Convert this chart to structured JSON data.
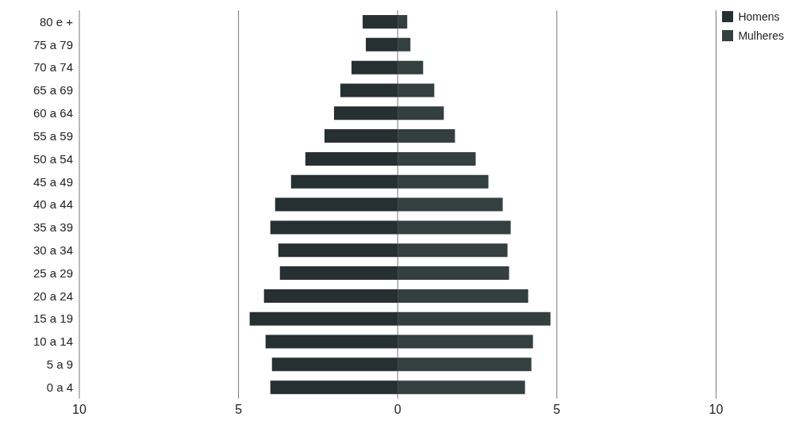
{
  "chart_data": {
    "type": "bar",
    "orientation": "horizontal",
    "stacked": true,
    "categories": [
      "80 e +",
      "75 a 79",
      "70 a 74",
      "65 a 69",
      "60 a 64",
      "55 a 59",
      "50 a 54",
      "45 a 49",
      "40 a 44",
      "35 a 39",
      "30 a 34",
      "25 a 29",
      "20 a 24",
      "15 a 19",
      "10 a 14",
      "5 a 9",
      "0 a 4"
    ],
    "series": [
      {
        "name": "Homens",
        "color": "#263032",
        "values": [
          -1.1,
          -1.0,
          -1.45,
          -1.8,
          -2.0,
          -2.3,
          -2.9,
          -3.35,
          -3.85,
          -4.0,
          -3.75,
          -3.7,
          -4.2,
          -4.65,
          -4.15,
          -3.95,
          -4.0
        ]
      },
      {
        "name": "Mulheres",
        "color": "#34403f",
        "values": [
          0.3,
          0.4,
          0.8,
          1.15,
          1.45,
          1.8,
          2.45,
          2.85,
          3.3,
          3.55,
          3.45,
          3.5,
          4.1,
          4.8,
          4.25,
          4.2,
          4.0
        ]
      }
    ],
    "xlim": [
      -10,
      10
    ],
    "xticks": [
      {
        "value": -10,
        "label": "10"
      },
      {
        "value": -5,
        "label": "5"
      },
      0,
      5,
      {
        "value": 10,
        "label": "10"
      }
    ],
    "grid": "x",
    "legend": "top right"
  }
}
